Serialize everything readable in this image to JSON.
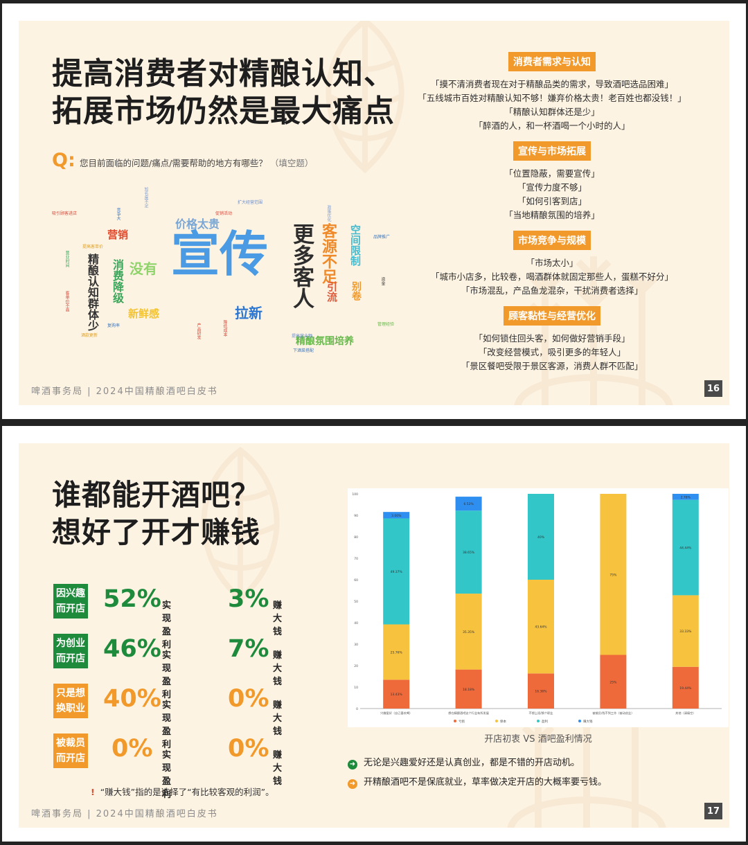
{
  "slide16": {
    "title_line1": "提高消费者对精酿认知、",
    "title_line2": "拓展市场仍然是最大痛点",
    "q_mark": "Q:",
    "question": "您目前面临的问题/痛点/需要帮助的地方有哪些？",
    "question_fill": "（填空题）",
    "wordcloud": {
      "xuanchuan": "宣传",
      "gengduo_keren": "更多客人",
      "keyuan_buzu": "客源不足",
      "jiage_taigui": "价格太贵",
      "meiyou": "没有",
      "xiaofei_jiangji": "消费降级",
      "jingniang_renzhi": "精酿认知群体少",
      "yingxiao": "营销",
      "laxin": "拉新",
      "xinxiangan": "新鲜感",
      "kongjian_xianzhi": "空间限制",
      "yinliu": "引流",
      "juanjuan": "别卷",
      "fenwei_peiyang": "精酿氛围培养",
      "tiny_words": [
        "吸引顾客进店",
        "竞争大",
        "知名度不足",
        "促销活动",
        "扩大经营范围",
        "政策优化",
        "品牌推广",
        "提高客单价",
        "营业时间",
        "客单价不高",
        "复购率",
        "酒款更新",
        "产品研发",
        "降低成本",
        "提高营业额",
        "资金",
        "管理经验",
        "下酒菜搭配",
        "营销推广",
        "人流",
        "场地"
      ]
    },
    "categories": [
      {
        "label": "消费者需求与认知",
        "quotes": [
          "「摸不清消费者现在对于精酿品类的需求，导致酒吧选品困难」",
          "「五线城市百姓对精酿认知不够！嫌弃价格太贵！老百姓也都没钱！」",
          "「精酿认知群体还是少」",
          "「醉酒的人，和一杯酒喝一个小时的人」"
        ]
      },
      {
        "label": "宣传与市场拓展",
        "quotes": [
          "「位置隐蔽，需要宣传」",
          "「宣传力度不够」",
          "「如何引客到店」",
          "「当地精酿氛围的培养」"
        ]
      },
      {
        "label": "市场竞争与规模",
        "quotes": [
          "「市场太小」",
          "「城市小店多，比较卷，喝酒群体就固定那些人，蛋糕不好分」",
          "「市场混乱，产品鱼龙混杂，干扰消费者选择」"
        ]
      },
      {
        "label": "顾客黏性与经营优化",
        "quotes": [
          "「如何锁住回头客，如何做好营销手段」",
          "「改变经营模式，吸引更多的年轻人」",
          "「景区餐吧受限于景区客源，消费人群不匹配」"
        ]
      }
    ],
    "footer": "啤酒事务局 | 2024中国精酿酒吧白皮书",
    "page_number": "16"
  },
  "slide17": {
    "title_line1": "谁都能开酒吧？",
    "title_line2": "想好了开才赚钱",
    "rows": [
      {
        "tag": "因兴趣\n而开店",
        "color": "#1e8a3c",
        "pct_profit": "52%",
        "profit_label": "实现盈利",
        "pct_rich": "3%",
        "rich_label": "赚大钱"
      },
      {
        "tag": "为创业\n而开店",
        "color": "#1e8a3c",
        "pct_profit": "46%",
        "profit_label": "实现盈利",
        "pct_rich": "7%",
        "rich_label": "赚大钱"
      },
      {
        "tag": "只是想\n换职业",
        "color": "#f19a2b",
        "pct_profit": "40%",
        "profit_label": "实现盈利",
        "pct_rich": "0%",
        "rich_label": "赚大钱"
      },
      {
        "tag": "被裁员\n而开店",
        "color": "#f19a2b",
        "pct_profit": "0%",
        "profit_label": "实现盈利",
        "pct_rich": "0%",
        "rich_label": "赚大钱"
      }
    ],
    "note_mark": "!",
    "note": "“赚大钱”指的是选择了“有比较客观的利润”。",
    "chart_caption": "开店初衷 VS 酒吧盈利情况",
    "conclusions": [
      {
        "text": "无论是兴趣爱好还是认真创业，都是不错的开店动机。",
        "color": "#1e8a3c"
      },
      {
        "text": "开精酿酒吧不是保底就业，草率做决定开店的大概率要亏钱。",
        "color": "#f19a2b"
      }
    ],
    "footer": "啤酒事务局 | 2024中国精酿酒吧白皮书",
    "page_number": "17"
  },
  "chart_data": {
    "type": "bar",
    "stacked": true,
    "categories": [
      "兴趣爱好（自己喜欢喝）",
      "想在精酿酒吧这个行业有所发展",
      "不想上班/换个职业",
      "被裁员/找不到工作（被动创业）",
      "其他（请填空）"
    ],
    "series": [
      {
        "name": "亏损",
        "color": "#ef6a3a",
        "values": [
          13.43,
          18.18,
          16.36,
          25,
          19.44
        ],
        "labels": [
          "13.43%",
          "18.18%",
          "16.36%",
          "25%",
          "19.44%"
        ]
      },
      {
        "name": "保本",
        "color": "#f7c33f",
        "values": [
          25.76,
          35.35,
          43.64,
          75,
          33.33
        ],
        "labels": [
          "25.76%",
          "35.35%",
          "43.64%",
          "75%",
          "33.33%"
        ]
      },
      {
        "name": "盈利",
        "color": "#33c6c8",
        "values": [
          49.37,
          38.65,
          40,
          0,
          44.44
        ],
        "labels": [
          "49.37%",
          "38.65%",
          "40%",
          "",
          "44.44%"
        ]
      },
      {
        "name": "赚大钱",
        "color": "#2f8ff0",
        "values": [
          3.0,
          6.5,
          0,
          0,
          2.8
        ],
        "labels": [
          "3.00%",
          "6.52%",
          "",
          "",
          "2.78%"
        ]
      }
    ],
    "ylim": [
      0,
      100
    ],
    "yticks": [
      0,
      10,
      20,
      30,
      40,
      50,
      60,
      70,
      80,
      90,
      100
    ]
  }
}
